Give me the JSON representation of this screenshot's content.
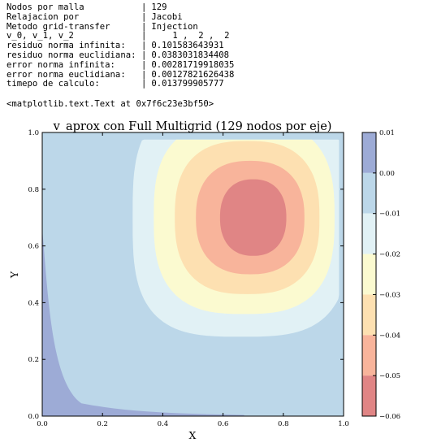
{
  "console": {
    "rows": [
      {
        "label": "Nodos por malla",
        "sep": "|",
        "value": "129"
      },
      {
        "label": "Relajacion por",
        "sep": "|",
        "value": "Jacobi"
      },
      {
        "label": "Metodo grid-transfer",
        "sep": "|",
        "value": "Injection"
      },
      {
        "label": "v_0, v_1, v_2",
        "sep": "|",
        "value": "1 ,  2 ,  2"
      },
      {
        "label": "residuo norma infinita:",
        "sep": "|",
        "value": "0.101583643931"
      },
      {
        "label": "residuo norma euclidiana:",
        "sep": "|",
        "value": "0.0383031834408"
      },
      {
        "label": "error norma infinita:",
        "sep": "|",
        "value": "0.00281719918035"
      },
      {
        "label": "error norma euclidiana:",
        "sep": "|",
        "value": "0.00127821626438"
      },
      {
        "label": "timepo de calculo:",
        "sep": "|",
        "value": "0.013799905777"
      }
    ],
    "repr": "<matplotlib.text.Text at 0x7f6c23e3bf50>"
  },
  "chart_data": {
    "type": "heatmap",
    "subtype": "filled-contour",
    "title": "v_aprox con Full Multigrid (129 nodos por eje)",
    "xlabel": "X",
    "ylabel": "Y",
    "xlim": [
      0,
      1
    ],
    "ylim": [
      0,
      1
    ],
    "xticks": [
      0,
      0.2,
      0.4,
      0.6,
      0.8,
      1.0
    ],
    "yticks": [
      0,
      0.2,
      0.4,
      0.6,
      0.8,
      1.0
    ],
    "xtick_labels": [
      "0.0",
      "0.2",
      "0.4",
      "0.6",
      "0.8",
      "1.0"
    ],
    "ytick_labels": [
      "0.0",
      "0.2",
      "0.4",
      "0.6",
      "0.8",
      "1.0"
    ],
    "grid": false,
    "minimum_location": [
      0.7,
      0.7
    ],
    "levels": [
      0.01,
      0.0,
      -0.01,
      -0.02,
      -0.03,
      -0.04,
      -0.05,
      -0.06
    ],
    "colorbar_labels": [
      "0.01",
      "0.00",
      "−0.01",
      "−0.02",
      "−0.03",
      "−0.04",
      "−0.05",
      "−0.06"
    ],
    "band_colors": [
      "#9dabd6",
      "#bcd7e9",
      "#e1f1f5",
      "#fbfad0",
      "#fde0b1",
      "#f8b49b",
      "#e08585"
    ]
  }
}
